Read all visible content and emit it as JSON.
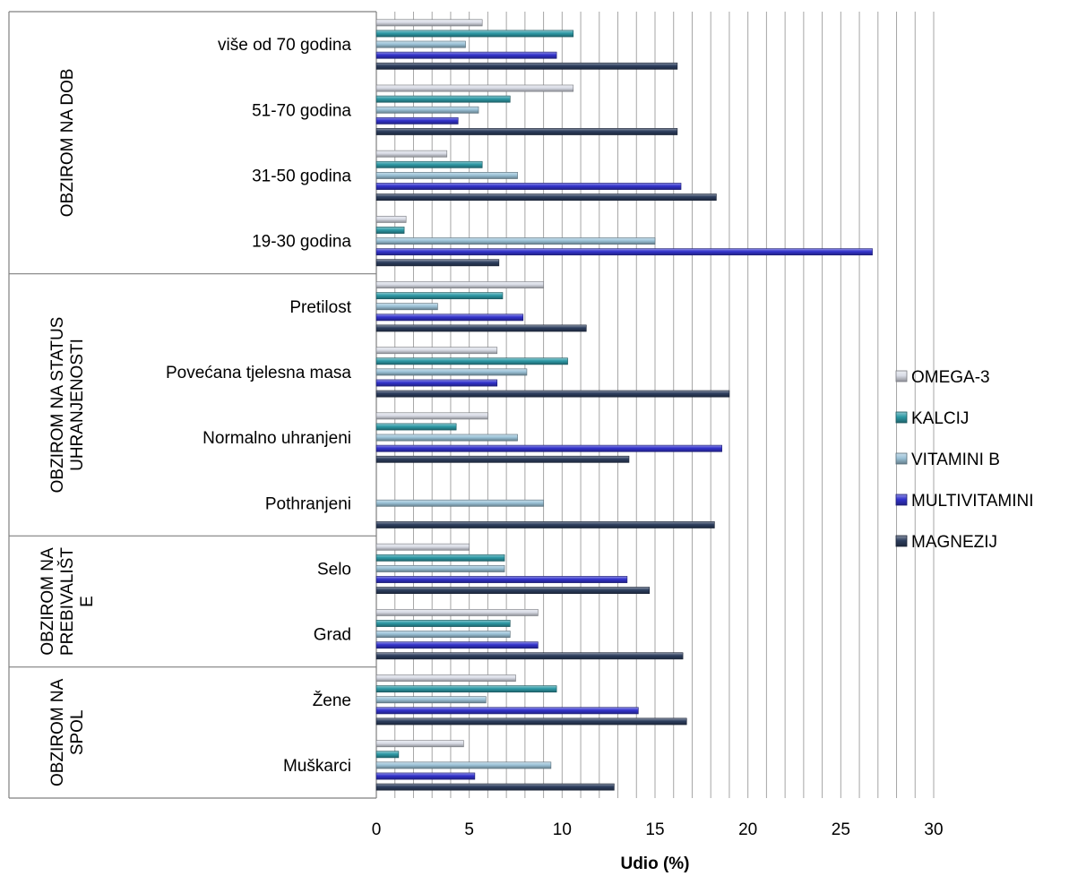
{
  "chart_data": {
    "type": "bar",
    "orientation": "horizontal",
    "xlabel": "Udio (%)",
    "xlim": [
      0,
      30
    ],
    "x_ticks": [
      "0",
      "5",
      "10",
      "15",
      "20",
      "25",
      "30"
    ],
    "grid": "vertical lines every 1%",
    "legend_position": "right",
    "groups": [
      {
        "label": [
          "OBZIROM NA DOB"
        ],
        "categories": [
          "više od 70 godina",
          "51-70 godina",
          "31-50 godina",
          "19-30 godina"
        ]
      },
      {
        "label": [
          "OBZIROM NA STATUS",
          "UHRANJENOSTI"
        ],
        "categories": [
          "Pretilost",
          "Povećana tjelesna masa",
          "Normalno uhranjeni",
          "Pothranjeni"
        ]
      },
      {
        "label": [
          "OBZIROM NA",
          "PREBIVALIŠT",
          "E"
        ],
        "categories": [
          "Selo",
          "Grad"
        ]
      },
      {
        "label": [
          "OBZIROM NA",
          "SPOL"
        ],
        "categories": [
          "Žene",
          "Muškarci"
        ]
      }
    ],
    "categories": [
      "više od 70 godina",
      "51-70 godina",
      "31-50 godina",
      "19-30 godina",
      "Pretilost",
      "Povećana tjelesna masa",
      "Normalno uhranjeni",
      "Pothranjeni",
      "Selo",
      "Grad",
      "Žene",
      "Muškarci"
    ],
    "series": [
      {
        "name": "OMEGA-3",
        "color": "#d9dce6",
        "values": [
          5.7,
          10.6,
          3.8,
          1.6,
          9.0,
          6.5,
          6.0,
          0,
          5.0,
          8.7,
          7.5,
          4.7
        ]
      },
      {
        "name": "KALCIJ",
        "color": "#2e9aa6",
        "values": [
          10.6,
          7.2,
          5.7,
          1.5,
          6.8,
          10.3,
          4.3,
          0,
          6.9,
          7.2,
          9.7,
          1.2
        ]
      },
      {
        "name": "VITAMINI B",
        "color": "#9cc3d8",
        "values": [
          4.8,
          5.5,
          7.6,
          15.0,
          3.3,
          8.1,
          7.6,
          9.0,
          6.9,
          7.2,
          5.9,
          9.4
        ]
      },
      {
        "name": "MULTIVITAMINI",
        "color": "#3333cc",
        "values": [
          9.7,
          4.4,
          16.4,
          26.7,
          7.9,
          6.5,
          18.6,
          0,
          13.5,
          8.7,
          14.1,
          5.3
        ]
      },
      {
        "name": "MAGNEZIJ",
        "color": "#2d3e5e",
        "values": [
          16.2,
          16.2,
          18.3,
          6.6,
          11.3,
          19.0,
          13.6,
          18.2,
          14.7,
          16.5,
          16.7,
          12.8
        ]
      }
    ]
  }
}
